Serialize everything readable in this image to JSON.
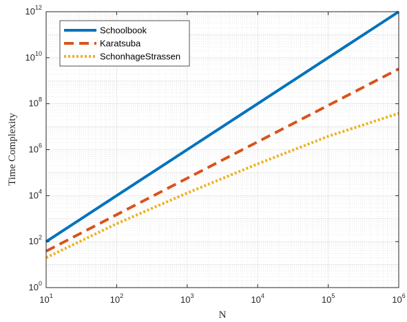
{
  "chart_data": {
    "type": "line",
    "title": "",
    "xlabel": "N",
    "ylabel": "Time Complexity",
    "xscale": "log",
    "yscale": "log",
    "xlim": [
      10,
      1000000
    ],
    "ylim": [
      1,
      1000000000000
    ],
    "grid": true,
    "legend_position": "top-left",
    "x_ticks": [
      {
        "base": "10",
        "exp": "1",
        "value": 10
      },
      {
        "base": "10",
        "exp": "2",
        "value": 100
      },
      {
        "base": "10",
        "exp": "3",
        "value": 1000
      },
      {
        "base": "10",
        "exp": "4",
        "value": 10000
      },
      {
        "base": "10",
        "exp": "5",
        "value": 100000
      },
      {
        "base": "10",
        "exp": "6",
        "value": 1000000
      }
    ],
    "y_ticks": [
      {
        "base": "10",
        "exp": "0",
        "value": 1
      },
      {
        "base": "10",
        "exp": "2",
        "value": 100
      },
      {
        "base": "10",
        "exp": "4",
        "value": 10000
      },
      {
        "base": "10",
        "exp": "6",
        "value": 1000000
      },
      {
        "base": "10",
        "exp": "8",
        "value": 100000000
      },
      {
        "base": "10",
        "exp": "10",
        "value": 10000000000
      },
      {
        "base": "10",
        "exp": "12",
        "value": 1000000000000
      }
    ],
    "x": [
      10,
      100,
      1000,
      10000,
      100000,
      1000000
    ],
    "series": [
      {
        "name": "Schoolbook",
        "color": "#0072BD",
        "dash": "solid",
        "values": [
          100,
          10000,
          1000000,
          100000000,
          10000000000,
          1000000000000
        ]
      },
      {
        "name": "Karatsuba",
        "color": "#D95319",
        "dash": "dashed",
        "values": [
          38.5,
          1479,
          56900,
          2190000,
          84100000,
          3240000000
        ]
      },
      {
        "name": "SchonhageStrassen",
        "color": "#EDB120",
        "dash": "dotted",
        "values": [
          20,
          600,
          13000,
          240000,
          3800000,
          38000000
        ]
      }
    ]
  },
  "colors": {
    "axis": "#262626",
    "grid": "#dcdcdc",
    "background": "#ffffff"
  }
}
